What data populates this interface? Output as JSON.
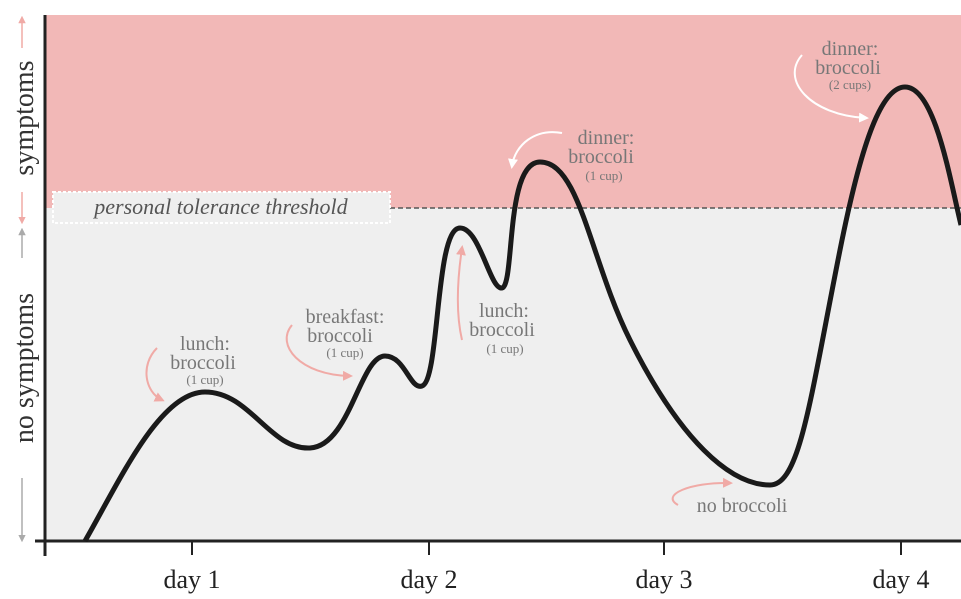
{
  "y_axis": {
    "upper_label": "symptoms",
    "lower_label": "no symptoms"
  },
  "threshold_label": "personal tolerance threshold",
  "x_labels": [
    "day 1",
    "day 2",
    "day 3",
    "day 4"
  ],
  "annotations": [
    {
      "lines": [
        "lunch:",
        "broccoli"
      ],
      "note": "(1 cup)"
    },
    {
      "lines": [
        "breakfast:",
        "broccoli"
      ],
      "note": "(1 cup)"
    },
    {
      "lines": [
        "lunch:",
        "broccoli"
      ],
      "note": "(1 cup)"
    },
    {
      "lines": [
        "dinner:",
        "broccoli"
      ],
      "note": "(1 cup)"
    },
    {
      "lines": [
        "dinner:",
        "broccoli"
      ],
      "note": "(2 cups)"
    },
    {
      "lines": [
        "no broccoli"
      ]
    }
  ]
}
